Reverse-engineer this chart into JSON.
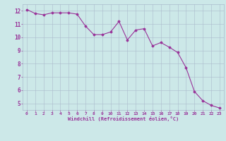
{
  "x": [
    0,
    1,
    2,
    3,
    4,
    5,
    6,
    7,
    8,
    9,
    10,
    11,
    12,
    13,
    14,
    15,
    16,
    17,
    18,
    19,
    20,
    21,
    22,
    23
  ],
  "y": [
    12.1,
    11.8,
    11.7,
    11.85,
    11.85,
    11.85,
    11.75,
    10.85,
    10.2,
    10.2,
    10.4,
    11.2,
    9.8,
    10.55,
    10.65,
    9.35,
    9.6,
    9.25,
    8.85,
    7.7,
    5.9,
    5.2,
    4.85,
    4.65
  ],
  "line_color": "#993399",
  "marker": "D",
  "marker_size": 1.5,
  "bg_color": "#cce8e8",
  "grid_color": "#aabbcc",
  "xlabel": "Windchill (Refroidissement éolien,°C)",
  "xlabel_color": "#993399",
  "tick_color": "#993399",
  "xlim": [
    -0.5,
    23.5
  ],
  "ylim": [
    4.5,
    12.5
  ],
  "yticks": [
    5,
    6,
    7,
    8,
    9,
    10,
    11,
    12
  ],
  "xticks": [
    0,
    1,
    2,
    3,
    4,
    5,
    6,
    7,
    8,
    9,
    10,
    11,
    12,
    13,
    14,
    15,
    16,
    17,
    18,
    19,
    20,
    21,
    22,
    23
  ],
  "line_width": 0.8
}
